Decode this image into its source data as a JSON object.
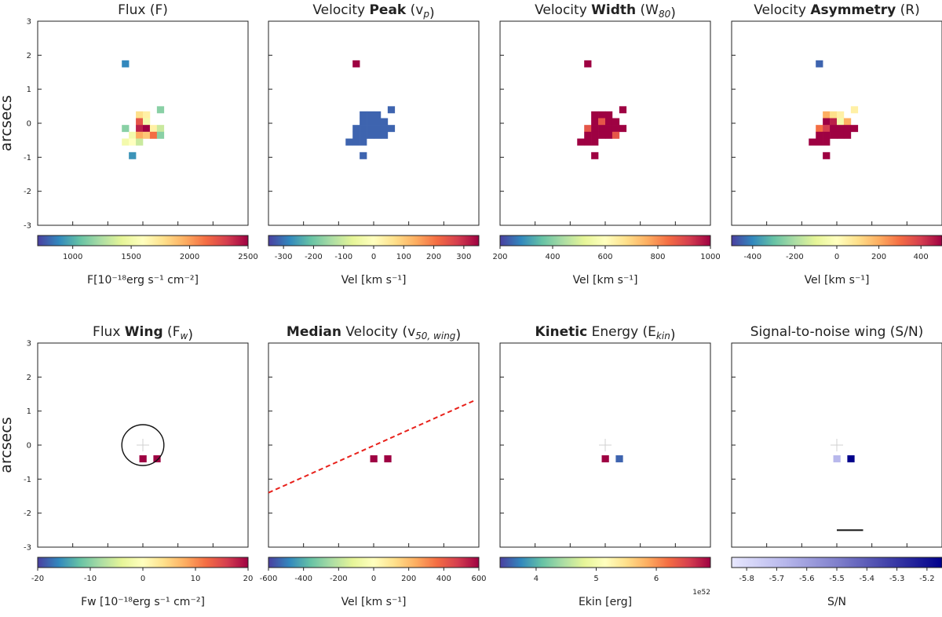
{
  "figure_title": "",
  "chart_data": [
    {
      "type": "heatmap",
      "title_parts": [
        {
          "t": "Flux (F)",
          "b": false
        }
      ],
      "ylabel": "arcsecs",
      "xlim": [
        -3,
        3
      ],
      "ylim": [
        -3,
        3
      ],
      "yticks": [
        "3",
        "2",
        "1",
        "0",
        "-1",
        "-2",
        "-3"
      ],
      "colormap": "spectral",
      "colorbar": {
        "min": 700,
        "max": 2500,
        "ticks": [
          "1000",
          "1500",
          "2000",
          "2500"
        ],
        "tick_values": [
          1000,
          1500,
          2000,
          2500
        ],
        "label": "F[10⁻¹⁸erg s⁻¹ cm⁻²]"
      },
      "pixels": [
        [
          -0.5,
          1.75,
          0.1
        ],
        [
          -0.1,
          0.25,
          0.6
        ],
        [
          0.1,
          0.25,
          0.55
        ],
        [
          -0.1,
          0.05,
          0.85
        ],
        [
          0.1,
          0.05,
          0.45
        ],
        [
          0.5,
          0.4,
          0.25
        ],
        [
          -0.5,
          -0.15,
          0.25
        ],
        [
          -0.1,
          -0.15,
          0.95
        ],
        [
          0.1,
          -0.15,
          1.0
        ],
        [
          0.3,
          -0.15,
          0.55
        ],
        [
          0.5,
          -0.15,
          0.35
        ],
        [
          -0.3,
          -0.35,
          0.45
        ],
        [
          -0.1,
          -0.35,
          0.7
        ],
        [
          0.1,
          -0.35,
          0.65
        ],
        [
          0.3,
          -0.35,
          0.8
        ],
        [
          0.5,
          -0.35,
          0.25
        ],
        [
          -0.5,
          -0.55,
          0.45
        ],
        [
          -0.3,
          -0.55,
          0.5
        ],
        [
          -0.1,
          -0.55,
          0.35
        ],
        [
          -0.3,
          -0.95,
          0.12
        ]
      ]
    },
    {
      "type": "heatmap",
      "title_parts": [
        {
          "t": "Velocity ",
          "b": false
        },
        {
          "t": "Peak",
          "b": true
        },
        {
          "t": " (v",
          "b": false
        },
        {
          "t": "p",
          "b": false,
          "sub": true
        },
        {
          "t": ")",
          "b": false
        }
      ],
      "xlim": [
        -3,
        3
      ],
      "ylim": [
        -3,
        3
      ],
      "colormap": "spectral",
      "colorbar": {
        "min": -350,
        "max": 350,
        "ticks": [
          "-300",
          "-200",
          "-100",
          "0",
          "100",
          "200",
          "300"
        ],
        "tick_values": [
          -300,
          -200,
          -100,
          0,
          100,
          200,
          300
        ],
        "label": "Vel [km s⁻¹]"
      },
      "pixels": [
        [
          -0.5,
          1.75,
          1.0
        ],
        [
          -0.3,
          0.25,
          0.05
        ],
        [
          -0.1,
          0.25,
          0.05
        ],
        [
          0.1,
          0.25,
          0.05
        ],
        [
          0.5,
          0.4,
          0.05
        ],
        [
          -0.3,
          0.05,
          0.05
        ],
        [
          -0.1,
          0.05,
          0.05
        ],
        [
          0.1,
          0.05,
          0.05
        ],
        [
          0.3,
          0.05,
          0.05
        ],
        [
          -0.5,
          -0.15,
          0.05
        ],
        [
          -0.3,
          -0.15,
          0.05
        ],
        [
          -0.1,
          -0.15,
          0.05
        ],
        [
          0.1,
          -0.15,
          0.05
        ],
        [
          0.3,
          -0.15,
          0.05
        ],
        [
          0.5,
          -0.15,
          0.05
        ],
        [
          -0.5,
          -0.35,
          0.05
        ],
        [
          -0.3,
          -0.35,
          0.05
        ],
        [
          -0.1,
          -0.35,
          0.05
        ],
        [
          0.1,
          -0.35,
          0.05
        ],
        [
          0.3,
          -0.35,
          0.05
        ],
        [
          -0.7,
          -0.55,
          0.05
        ],
        [
          -0.5,
          -0.55,
          0.05
        ],
        [
          -0.3,
          -0.55,
          0.05
        ],
        [
          -0.3,
          -0.95,
          0.05
        ]
      ]
    },
    {
      "type": "heatmap",
      "title_parts": [
        {
          "t": "Velocity ",
          "b": false
        },
        {
          "t": "Width",
          "b": true
        },
        {
          "t": " (W",
          "b": false
        },
        {
          "t": "80",
          "b": false,
          "sub": true
        },
        {
          "t": ")",
          "b": false
        }
      ],
      "xlim": [
        -3,
        3
      ],
      "ylim": [
        -3,
        3
      ],
      "colormap": "spectral",
      "colorbar": {
        "min": 200,
        "max": 1000,
        "ticks": [
          "200",
          "400",
          "600",
          "800",
          "1000"
        ],
        "tick_values": [
          200,
          400,
          600,
          800,
          1000
        ],
        "label": "Vel [km s⁻¹]"
      },
      "pixels": [
        [
          -0.5,
          1.75,
          1.0
        ],
        [
          -0.3,
          0.25,
          1.0
        ],
        [
          -0.1,
          0.25,
          1.0
        ],
        [
          0.1,
          0.25,
          1.0
        ],
        [
          0.5,
          0.4,
          1.0
        ],
        [
          -0.3,
          0.05,
          1.0
        ],
        [
          -0.1,
          0.05,
          0.85
        ],
        [
          0.1,
          0.05,
          1.0
        ],
        [
          0.3,
          0.05,
          1.0
        ],
        [
          -0.5,
          -0.15,
          0.85
        ],
        [
          -0.3,
          -0.15,
          1.0
        ],
        [
          -0.1,
          -0.15,
          1.0
        ],
        [
          0.1,
          -0.15,
          1.0
        ],
        [
          0.3,
          -0.15,
          1.0
        ],
        [
          0.5,
          -0.15,
          1.0
        ],
        [
          -0.5,
          -0.35,
          1.0
        ],
        [
          -0.3,
          -0.35,
          1.0
        ],
        [
          -0.1,
          -0.35,
          1.0
        ],
        [
          0.1,
          -0.35,
          1.0
        ],
        [
          0.3,
          -0.35,
          0.85
        ],
        [
          -0.7,
          -0.55,
          1.0
        ],
        [
          -0.5,
          -0.55,
          1.0
        ],
        [
          -0.3,
          -0.55,
          1.0
        ],
        [
          -0.3,
          -0.95,
          1.0
        ]
      ]
    },
    {
      "type": "heatmap",
      "title_parts": [
        {
          "t": "Velocity ",
          "b": false
        },
        {
          "t": "Asymmetry",
          "b": true
        },
        {
          "t": " (R)",
          "b": false
        }
      ],
      "xlim": [
        -3,
        3
      ],
      "ylim": [
        -3,
        3
      ],
      "colormap": "spectral",
      "colorbar": {
        "min": -500,
        "max": 500,
        "ticks": [
          "-400",
          "-200",
          "0",
          "200",
          "400"
        ],
        "tick_values": [
          -400,
          -200,
          0,
          200,
          400
        ],
        "label": "Vel [km s⁻¹]"
      },
      "pixels": [
        [
          -0.5,
          1.75,
          0.05
        ],
        [
          -0.3,
          0.25,
          0.7
        ],
        [
          -0.1,
          0.25,
          0.6
        ],
        [
          0.1,
          0.25,
          0.55
        ],
        [
          0.5,
          0.4,
          0.55
        ],
        [
          -0.3,
          0.05,
          1.0
        ],
        [
          -0.1,
          0.05,
          0.95
        ],
        [
          0.1,
          0.05,
          0.45
        ],
        [
          0.3,
          0.05,
          0.7
        ],
        [
          -0.5,
          -0.15,
          0.8
        ],
        [
          -0.3,
          -0.15,
          0.9
        ],
        [
          -0.1,
          -0.15,
          1.0
        ],
        [
          0.1,
          -0.15,
          1.0
        ],
        [
          0.3,
          -0.15,
          1.0
        ],
        [
          0.5,
          -0.15,
          1.0
        ],
        [
          -0.5,
          -0.35,
          1.0
        ],
        [
          -0.3,
          -0.35,
          1.0
        ],
        [
          -0.1,
          -0.35,
          1.0
        ],
        [
          0.1,
          -0.35,
          1.0
        ],
        [
          0.3,
          -0.35,
          1.0
        ],
        [
          -0.7,
          -0.55,
          1.0
        ],
        [
          -0.5,
          -0.55,
          1.0
        ],
        [
          -0.3,
          -0.55,
          1.0
        ],
        [
          -0.3,
          -0.95,
          1.0
        ]
      ]
    },
    {
      "type": "heatmap",
      "title_parts": [
        {
          "t": "Flux ",
          "b": false
        },
        {
          "t": "Wing",
          "b": true
        },
        {
          "t": " (F",
          "b": false
        },
        {
          "t": "w",
          "b": false,
          "sub": true
        },
        {
          "t": ")",
          "b": false
        }
      ],
      "ylabel": "arcsecs",
      "xlim": [
        -3,
        3
      ],
      "ylim": [
        -3,
        3
      ],
      "yticks": [
        "3",
        "2",
        "1",
        "0",
        "-1",
        "-2",
        "-3"
      ],
      "colormap": "spectral",
      "colorbar": {
        "min": -20,
        "max": 20,
        "ticks": [
          "-20",
          "-10",
          "0",
          "10",
          "20"
        ],
        "tick_values": [
          -20,
          -10,
          0,
          10,
          20
        ],
        "label": "Fw [10⁻¹⁸erg s⁻¹ cm⁻²]"
      },
      "pixels": [
        [
          0.0,
          -0.4,
          1.0
        ],
        [
          0.4,
          -0.4,
          1.0
        ]
      ],
      "cross": [
        0,
        0
      ],
      "circle": {
        "cx": 0,
        "cy": 0,
        "r": 0.6
      }
    },
    {
      "type": "heatmap",
      "title_parts": [
        {
          "t": "Median",
          "b": true
        },
        {
          "t": " Velocity (v",
          "b": false
        },
        {
          "t": "50, wing",
          "b": false,
          "sub": true
        },
        {
          "t": ")",
          "b": false
        }
      ],
      "xlim": [
        -3,
        3
      ],
      "ylim": [
        -3,
        3
      ],
      "colormap": "spectral",
      "colorbar": {
        "min": -600,
        "max": 600,
        "ticks": [
          "-600",
          "-400",
          "-200",
          "0",
          "200",
          "400",
          "600"
        ],
        "tick_values": [
          -600,
          -400,
          -200,
          0,
          200,
          400,
          600
        ],
        "label": "Vel [km s⁻¹]"
      },
      "pixels": [
        [
          0.0,
          -0.4,
          1.0
        ],
        [
          0.4,
          -0.4,
          1.0
        ]
      ],
      "dashed_line": {
        "x1": -3,
        "y1": -1.4,
        "x2": 2.85,
        "y2": 1.3,
        "color": "#e8211b"
      }
    },
    {
      "type": "heatmap",
      "title_parts": [
        {
          "t": "Kinetic",
          "b": true
        },
        {
          "t": " Energy (E",
          "b": false
        },
        {
          "t": "kin",
          "b": false,
          "sub": true
        },
        {
          "t": ")",
          "b": false
        }
      ],
      "xlim": [
        -3,
        3
      ],
      "ylim": [
        -3,
        3
      ],
      "colormap": "spectral",
      "colorbar": {
        "min": 3.4,
        "max": 6.9,
        "ticks": [
          "4",
          "5",
          "6"
        ],
        "tick_values": [
          4,
          5,
          6
        ],
        "label": "Ekin [erg]",
        "sci": "1e52"
      },
      "pixels": [
        [
          0.0,
          -0.4,
          1.0
        ],
        [
          0.4,
          -0.4,
          0.05
        ]
      ],
      "cross": [
        0,
        0
      ]
    },
    {
      "type": "heatmap",
      "title_parts": [
        {
          "t": "Signal-to-noise wing (S/N)",
          "b": false
        }
      ],
      "xlim": [
        -3,
        3
      ],
      "ylim": [
        -3,
        3
      ],
      "colormap": "blues",
      "colorbar": {
        "min": -5.85,
        "max": -5.15,
        "ticks": [
          "-5.8",
          "-5.7",
          "-5.6",
          "-5.5",
          "-5.4",
          "-5.3",
          "-5.2"
        ],
        "tick_values": [
          -5.8,
          -5.7,
          -5.6,
          -5.5,
          -5.4,
          -5.3,
          -5.2
        ],
        "label": "S/N"
      },
      "pixels": [
        [
          0.0,
          -0.4,
          0.25
        ],
        [
          0.4,
          -0.4,
          1.0
        ]
      ],
      "cross": [
        0,
        0
      ],
      "scalebar": {
        "x1": 0,
        "x2": 0.75,
        "y": -2.5
      }
    }
  ]
}
